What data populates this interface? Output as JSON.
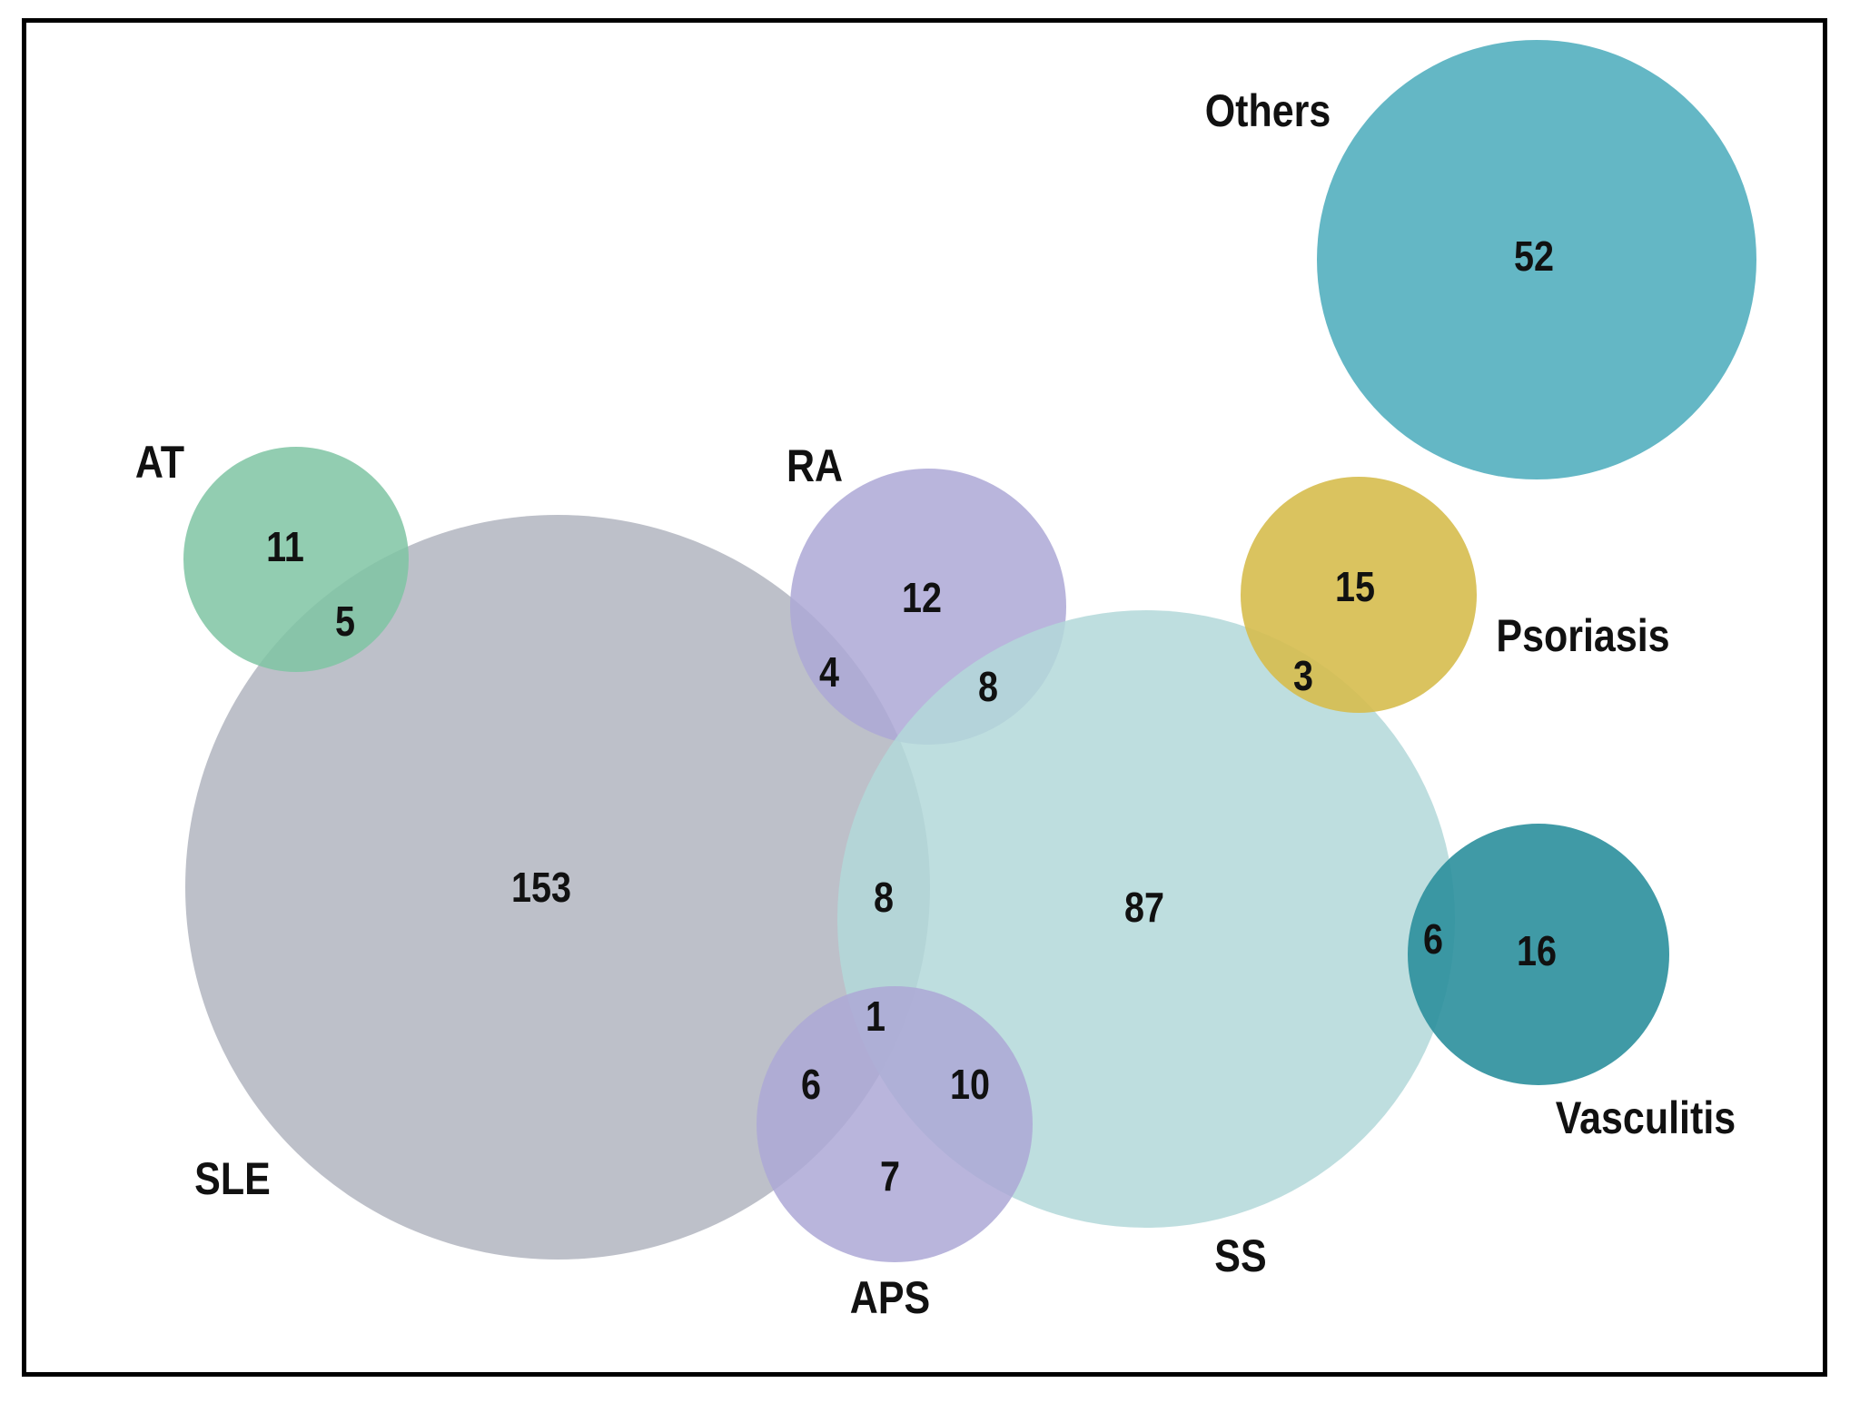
{
  "diagram": {
    "type": "venn/euler",
    "sets": [
      {
        "id": "sle",
        "label": "SLE",
        "color": "#B2B5BF",
        "opacity": 0.85
      },
      {
        "id": "ss",
        "label": "SS",
        "color": "#B3D8D9",
        "opacity": 0.85
      },
      {
        "id": "ra",
        "label": "RA",
        "color": "#ADA8D6",
        "opacity": 0.85
      },
      {
        "id": "aps",
        "label": "APS",
        "color": "#ADA8D6",
        "opacity": 0.85
      },
      {
        "id": "at",
        "label": "AT",
        "color": "#7FC4A3",
        "opacity": 0.85
      },
      {
        "id": "psoriasis",
        "label": "Psoriasis",
        "color": "#D6BD4E",
        "opacity": 0.9
      },
      {
        "id": "vasculitis",
        "label": "Vasculitis",
        "color": "#2B8F9C",
        "opacity": 0.9
      },
      {
        "id": "others",
        "label": "Others",
        "color": "#4FADBD",
        "opacity": 0.88
      }
    ],
    "counts": {
      "sle_only": "153",
      "ss_only": "87",
      "ra_only": "12",
      "at_only": "11",
      "psoriasis_only": "15",
      "vasculitis_only": "16",
      "others": "52",
      "aps_only": "7",
      "at_sle": "5",
      "ra_sle": "4",
      "ra_ss": "8",
      "sle_ss": "8",
      "sle_ss_aps": "1",
      "sle_aps": "6",
      "ss_aps": "10",
      "ss_psoriasis": "3",
      "ss_vasculitis": "6"
    }
  }
}
